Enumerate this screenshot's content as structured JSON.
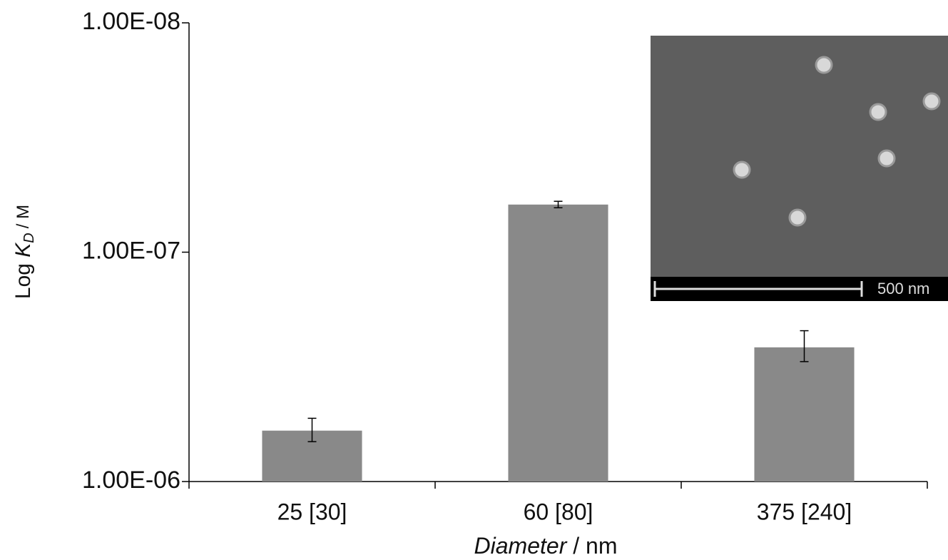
{
  "chart_data": {
    "type": "bar",
    "categories": [
      "25 [30]",
      "60 [80]",
      "375 [240]"
    ],
    "values": [
      6e-07,
      6.2e-08,
      2.6e-07
    ],
    "errors": [
      7e-08,
      2e-09,
      4e-08
    ],
    "color": "#898989",
    "log_scale": true,
    "ylim": [
      1e-06,
      1e-08
    ],
    "yticks": [
      {
        "value": 1e-08,
        "label": "1.00E-08"
      },
      {
        "value": 1e-07,
        "label": "1.00E-07"
      },
      {
        "value": 1e-06,
        "label": "1.00E-06"
      }
    ],
    "ylabel": {
      "prefix": "Log",
      "symbol": "K",
      "subscript": "D",
      "unit": "/ M"
    },
    "xlabel": {
      "name": "Diameter",
      "unit": "/ nm"
    },
    "inset_scale_label": "500 nm"
  }
}
